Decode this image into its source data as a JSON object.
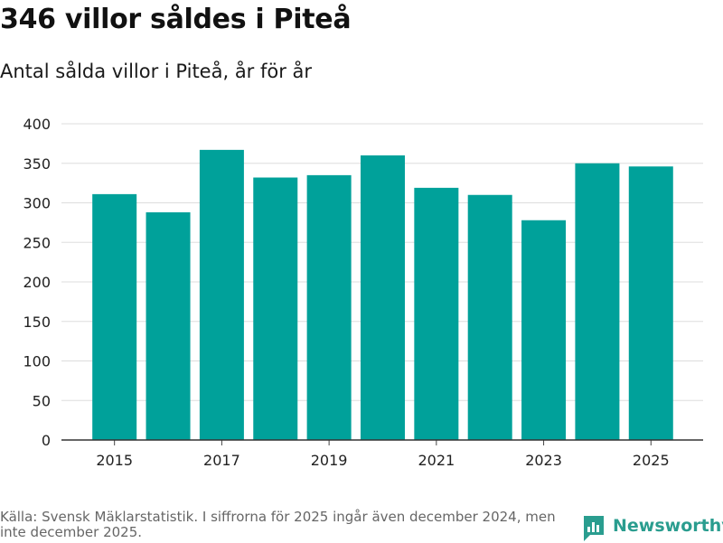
{
  "header": {
    "title": "346 villor såldes i Piteå",
    "subtitle": "Antal sålda villor i Piteå, år för år"
  },
  "chart_data": {
    "type": "bar",
    "categories": [
      "2015",
      "2016",
      "2017",
      "2018",
      "2019",
      "2020",
      "2021",
      "2022",
      "2023",
      "2024",
      "2025"
    ],
    "values": [
      311,
      288,
      367,
      332,
      335,
      360,
      319,
      310,
      278,
      350,
      346
    ],
    "x_tick_labels": [
      "2015",
      "2017",
      "2019",
      "2021",
      "2023",
      "2025"
    ],
    "y_ticks": [
      0,
      50,
      100,
      150,
      200,
      250,
      300,
      350,
      400
    ],
    "ylim": [
      0,
      400
    ],
    "grid": true,
    "title": "346 villor såldes i Piteå",
    "xlabel": "",
    "ylabel": "",
    "bar_color": "#00a19a"
  },
  "footer": {
    "source": "Källa: Svensk Mäklarstatistik. I siffrorna för 2025 ingår även december 2024, men inte december 2025.",
    "brand": "Newsworthy",
    "brand_color": "#2a9d8f"
  }
}
